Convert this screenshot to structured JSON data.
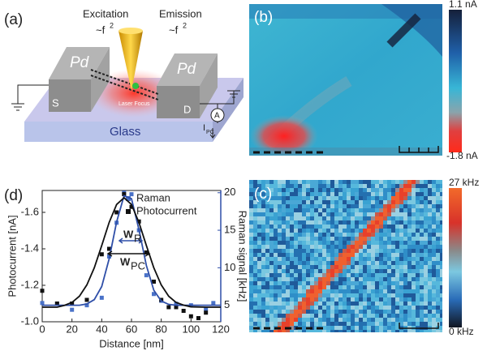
{
  "panels": {
    "a": {
      "label": "(a)",
      "excitation": "Excitation",
      "excitation_scaling": "~f",
      "excitation_power": "2",
      "emission": "Emission",
      "emission_scaling": "~f",
      "emission_power": "2",
      "left_pad": "Pd",
      "right_pad": "Pd",
      "source": "S",
      "drain": "D",
      "substrate": "Glass",
      "focus": "Laser Focus",
      "meter": "A",
      "current": "I",
      "current_sub": "PC"
    },
    "b": {
      "label": "(b)",
      "colorbar_max": "1.1 nA",
      "colorbar_min": "-1.8 nA"
    },
    "c": {
      "label": "(c)",
      "colorbar_max": "27 kHz",
      "colorbar_min": "0 kHz"
    }
  },
  "chart_data": {
    "type": "scatter",
    "label": "(d)",
    "xlabel": "Distance [nm]",
    "ylabel": "Photocurrent [nA]",
    "y2label": "Raman signal [kHz]",
    "xlim": [
      0,
      120
    ],
    "xticks": [
      0,
      20,
      40,
      60,
      80,
      100,
      120
    ],
    "ylim": [
      -1.0,
      -1.72
    ],
    "yticks": [
      {
        "value": -1.0,
        "label": "-1.0"
      },
      -1.2,
      -1.4,
      -1.6
    ],
    "y2lim": [
      2.8,
      20.3
    ],
    "y2ticks": [
      5,
      10,
      15,
      20
    ],
    "y2color": "#2f4fa8",
    "series": [
      {
        "name": "Raman",
        "color": "#4a72c8",
        "marker": "square",
        "axis": "y2",
        "x": [
          0,
          10,
          20,
          30,
          40,
          45,
          50,
          55,
          60,
          65,
          70,
          75,
          80,
          90,
          100,
          110,
          115
        ],
        "values": [
          5.3,
          5.2,
          4.4,
          5.0,
          6.0,
          11.5,
          16,
          20,
          19.8,
          15,
          9,
          6.5,
          5.6,
          5.2,
          5.0,
          4.5,
          5.3
        ]
      },
      {
        "name": "Photocurrent",
        "color": "#111111",
        "marker": "square",
        "x": [
          0,
          10,
          20,
          30,
          40,
          45,
          50,
          55,
          60,
          65,
          70,
          75,
          80,
          85,
          90,
          95,
          100,
          105,
          110
        ],
        "values": [
          -1.17,
          -1.1,
          -1.1,
          -1.12,
          -1.37,
          -1.4,
          -1.6,
          -1.7,
          -1.63,
          -1.55,
          -1.38,
          -1.22,
          -1.12,
          -1.08,
          -1.08,
          -1.06,
          -1.03,
          -1.02,
          -1.05
        ]
      },
      {
        "color": "#2f4fa8",
        "style": "line",
        "axis": "y2",
        "x": [
          0,
          10,
          20,
          25,
          30,
          35,
          40,
          45,
          50,
          55,
          60,
          65,
          70,
          75,
          80,
          85,
          90,
          100,
          110,
          120
        ],
        "values": [
          5.0,
          5.0,
          5.0,
          5.0,
          5.17,
          5.75,
          7.5,
          11.2,
          16.1,
          19.6,
          19.2,
          15.1,
          10.3,
          7.0,
          5.57,
          5.12,
          5.0,
          5.0,
          5.0,
          5.0
        ]
      },
      {
        "color": "#111111",
        "style": "line",
        "x": [
          0,
          10,
          15,
          20,
          25,
          30,
          35,
          40,
          45,
          50,
          55,
          60,
          65,
          70,
          75,
          80,
          85,
          90,
          95,
          100,
          110,
          120
        ],
        "values": [
          -1.08,
          -1.08,
          -1.09,
          -1.106,
          -1.14,
          -1.202,
          -1.296,
          -1.418,
          -1.545,
          -1.643,
          -1.68,
          -1.643,
          -1.545,
          -1.418,
          -1.296,
          -1.202,
          -1.14,
          -1.106,
          -1.091,
          -1.082,
          -1.08,
          -1.08
        ]
      }
    ],
    "annotations": [
      {
        "text": "W",
        "sub": "R"
      },
      {
        "text": "W",
        "sub": "PC"
      }
    ]
  }
}
